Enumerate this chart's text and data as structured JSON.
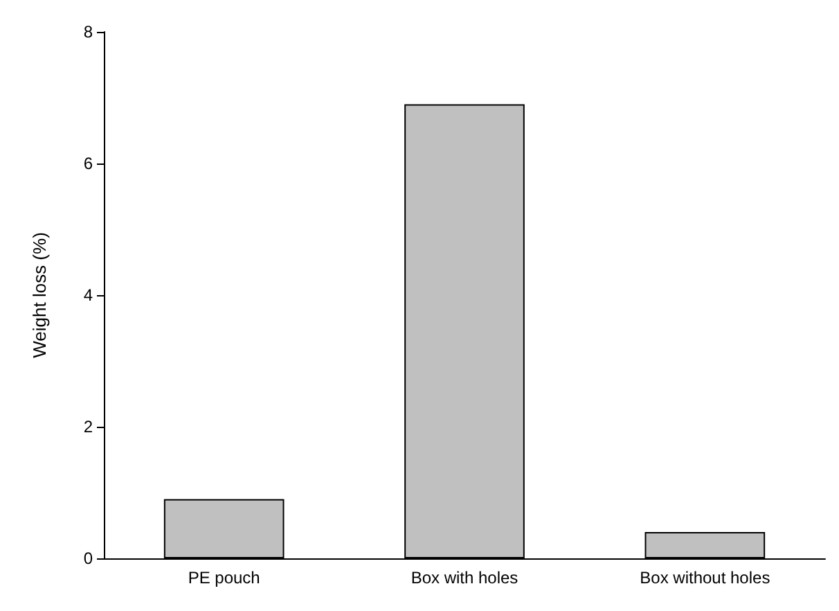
{
  "chart_data": {
    "type": "bar",
    "ylabel": "Weight loss (%)",
    "categories": [
      "PE pouch",
      "Box with holes",
      "Box without holes"
    ],
    "values": [
      0.9,
      6.9,
      0.4
    ],
    "color": "#c0c0c0",
    "ylim": [
      0,
      8
    ],
    "yticks": [
      0,
      2,
      4,
      6,
      8
    ],
    "grid": false
  }
}
